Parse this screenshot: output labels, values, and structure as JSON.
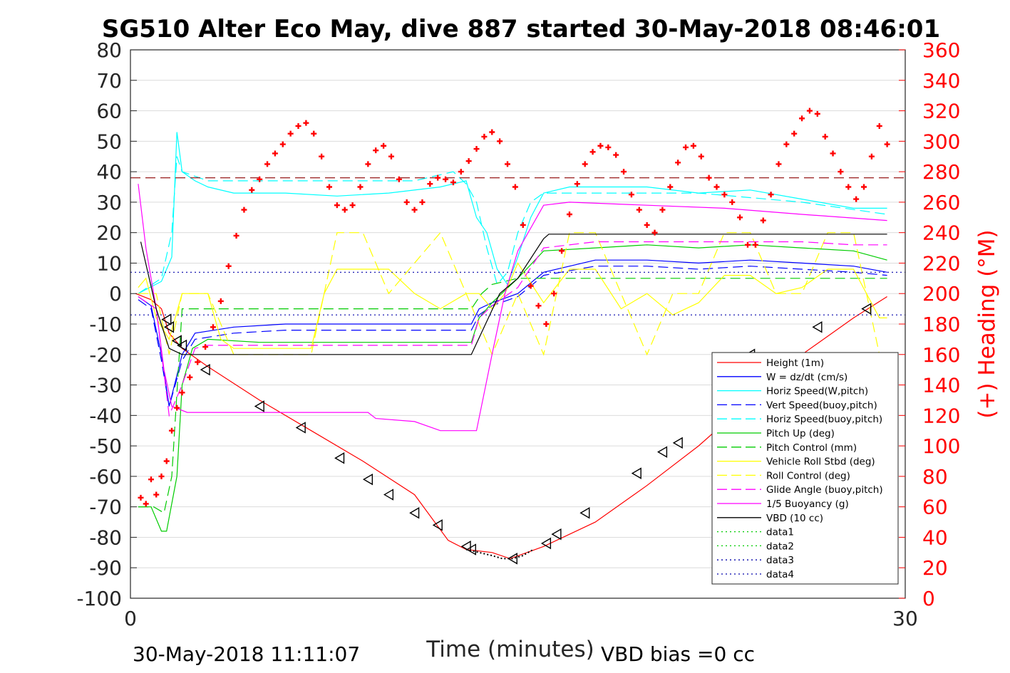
{
  "chart_data": {
    "type": "line",
    "title": "SG510 Alter Eco May, dive 887 started 30-May-2018 08:46:01",
    "xlabel": "Time (minutes)",
    "ylabel": "",
    "ylabel_right": "(+) Heading (°M)",
    "xlim": [
      0,
      30
    ],
    "ylim": [
      -100,
      80
    ],
    "ylim_right": [
      0,
      360
    ],
    "grid": true,
    "legend_position": "bottom-right",
    "x_ticks": [
      "0",
      "30"
    ],
    "y_ticks": [
      "80",
      "70",
      "60",
      "50",
      "40",
      "30",
      "20",
      "10",
      "0",
      "-10",
      "-20",
      "-30",
      "-40",
      "-50",
      "-60",
      "-70",
      "-80",
      "-90",
      "-100"
    ],
    "y_right_ticks": [
      "360",
      "340",
      "320",
      "300",
      "280",
      "260",
      "240",
      "220",
      "200",
      "180",
      "160",
      "140",
      "120",
      "100",
      "80",
      "60",
      "40",
      "20",
      "0"
    ],
    "footer_left": "30-May-2018 11:11:07",
    "footer_right": "VBD bias =0 cc",
    "series": [
      {
        "name": "Height (1m)",
        "color": "#ff0000",
        "style": "solid",
        "x": [
          0.2,
          0.8,
          1.2,
          1.5,
          2,
          3,
          5,
          7,
          9,
          11,
          12.3,
          13,
          14,
          14.7,
          16,
          18,
          20,
          22,
          24,
          26,
          28,
          29.3
        ],
        "y": [
          0,
          -2,
          -5,
          -13,
          -18,
          -24,
          -35,
          -45,
          -55,
          -66,
          -81,
          -84,
          -85,
          -87,
          -83,
          -75,
          -63,
          -50,
          -35,
          -20,
          -8,
          -1
        ]
      },
      {
        "name": "W = dz/dt (cm/s)",
        "color": "#0000ff",
        "style": "solid",
        "x": [
          0.3,
          0.8,
          1.2,
          1.5,
          2,
          2.5,
          4,
          6,
          8,
          10,
          12,
          13.2,
          13.5,
          14,
          15,
          16,
          18,
          20,
          22,
          24,
          26,
          28,
          29.3
        ],
        "y": [
          -1,
          -4,
          -20,
          -37,
          -20,
          -13,
          -11,
          -10,
          -10,
          -10,
          -10,
          -10,
          -5,
          -3,
          0,
          7,
          11,
          11,
          10,
          11,
          10,
          9,
          7
        ]
      },
      {
        "name": "Horiz Speed(W,pitch)",
        "color": "#00ffff",
        "style": "solid",
        "x": [
          0.3,
          1.2,
          1.6,
          1.8,
          2,
          2.5,
          3,
          4,
          6,
          8,
          10,
          12,
          13,
          13.4,
          13.8,
          14.2,
          14.6,
          15,
          15.5,
          16,
          17,
          20,
          22,
          24,
          26,
          28,
          29.3
        ],
        "y": [
          0,
          4,
          12,
          53,
          40,
          37,
          35,
          33,
          33,
          32,
          33,
          35,
          37,
          25,
          20,
          8,
          3,
          12,
          25,
          33,
          35,
          35,
          33,
          34,
          31,
          28,
          28
        ]
      },
      {
        "name": "Vert Speed(buoy,pitch)",
        "color": "#0000ff",
        "style": "dash",
        "x": [
          0.3,
          0.8,
          1.2,
          1.5,
          2,
          2.5,
          4,
          6,
          8,
          10,
          12,
          13.2,
          13.5,
          14,
          15,
          16,
          18,
          20,
          22,
          24,
          26,
          28,
          29.3
        ],
        "y": [
          -2,
          -5,
          -22,
          -37,
          -22,
          -15,
          -13,
          -12,
          -12,
          -12,
          -12,
          -12,
          -7,
          -4,
          -1,
          6,
          9,
          9,
          8,
          9,
          8,
          7,
          6
        ]
      },
      {
        "name": "Horiz Speed(buoy,pitch)",
        "color": "#00ffff",
        "style": "dash",
        "x": [
          0.3,
          1.2,
          1.6,
          1.8,
          2,
          3,
          5,
          8,
          11,
          12.5,
          13,
          13.4,
          13.8,
          14.2,
          14.6,
          15,
          15.5,
          16,
          18,
          22,
          26,
          29.3
        ],
        "y": [
          0,
          5,
          20,
          45,
          40,
          37,
          37,
          37,
          37,
          40,
          36,
          30,
          15,
          3,
          7,
          20,
          30,
          33,
          33,
          33,
          30,
          26
        ]
      },
      {
        "name": "Pitch Up (deg)",
        "color": "#00cc00",
        "style": "solid",
        "x": [
          0.3,
          0.8,
          1.2,
          1.4,
          1.8,
          2,
          2.4,
          3,
          5,
          8,
          11,
          13.2,
          13.5,
          14,
          15,
          16,
          18,
          20,
          22,
          24,
          26,
          28,
          29.3
        ],
        "y": [
          -70,
          -70,
          -78,
          -78,
          -60,
          -30,
          -18,
          -15,
          -16,
          -16,
          -16,
          -16,
          -8,
          -3,
          5,
          14,
          15,
          16,
          15,
          16,
          15,
          14,
          11
        ]
      },
      {
        "name": "Pitch Control (mm)",
        "color": "#00cc00",
        "style": "dash",
        "x": [
          0.3,
          0.9,
          1.3,
          1.6,
          2,
          3,
          8,
          13.2,
          13.6,
          14,
          15,
          29.3
        ],
        "y": [
          -70,
          -70,
          -72,
          -60,
          -5,
          -5,
          -5,
          -5,
          0,
          3,
          5,
          5
        ]
      },
      {
        "name": "Vehicle Roll Stbd (deg)",
        "color": "#ffff00",
        "style": "solid",
        "x": [
          0.3,
          0.6,
          1,
          1.5,
          2,
          2.5,
          3,
          3.5,
          4,
          5,
          6,
          7,
          7.5,
          8,
          10,
          11,
          12,
          13,
          13.5,
          14,
          14.5,
          15,
          16,
          17,
          18,
          19,
          20,
          21,
          22,
          23,
          24,
          25,
          26,
          27,
          28,
          29,
          29.3
        ],
        "y": [
          2,
          5,
          -8,
          -15,
          0,
          0,
          0,
          -15,
          -18,
          -18,
          -18,
          -18,
          0,
          8,
          8,
          0,
          -5,
          0,
          0,
          -5,
          0,
          10,
          -3,
          8,
          8,
          -5,
          0,
          -7,
          -3,
          6,
          6,
          0,
          2,
          8,
          8,
          -8,
          -8
        ]
      },
      {
        "name": "Roll Control (deg)",
        "color": "#ffff00",
        "style": "dash",
        "x": [
          0.3,
          1,
          1.5,
          2,
          3,
          4,
          6,
          7,
          8,
          9,
          10,
          12,
          13,
          14,
          15,
          16,
          17,
          18,
          19,
          20,
          21,
          22,
          23,
          24,
          25,
          26,
          27,
          28,
          29,
          29.3
        ],
        "y": [
          0,
          0,
          -20,
          0,
          0,
          -20,
          -20,
          -20,
          20,
          20,
          0,
          20,
          0,
          -20,
          0,
          -20,
          20,
          20,
          0,
          -20,
          0,
          0,
          20,
          20,
          0,
          0,
          20,
          20,
          -20,
          -20
        ]
      },
      {
        "name": "Glide Angle (buoy,pitch)",
        "color": "#ff00ff",
        "style": "dash",
        "x": [
          0.3,
          1,
          1.5,
          2,
          2.5,
          3,
          5,
          8,
          11,
          13.2,
          13.5,
          14,
          15,
          16,
          18,
          20,
          22,
          24,
          26,
          28,
          29.3
        ],
        "y": [
          -1,
          -5,
          -40,
          -30,
          -18,
          -17,
          -17,
          -17,
          -17,
          -17,
          -8,
          -4,
          2,
          15,
          17,
          17,
          17,
          17,
          17,
          16,
          16
        ]
      },
      {
        "name": "1/5 Buoyancy (g)",
        "color": "#ff00ff",
        "style": "solid",
        "x": [
          0.3,
          0.6,
          1,
          1.3,
          1.6,
          1.9,
          2.2,
          3,
          5,
          8,
          9.2,
          9.5,
          11,
          12,
          13,
          13.4,
          14,
          14.5,
          15,
          16,
          17,
          20,
          23,
          26,
          29.3
        ],
        "y": [
          36,
          15,
          -5,
          -25,
          -37,
          -38,
          -39,
          -39,
          -39,
          -39,
          -39,
          -41,
          -42,
          -45,
          -45,
          -45,
          -20,
          0,
          14,
          29,
          30,
          29,
          28,
          26,
          24
        ]
      },
      {
        "name": "VBD (10 cc)",
        "color": "#000000",
        "style": "solid",
        "x": [
          0.4,
          1,
          1.5,
          2,
          2.5,
          3,
          5,
          8,
          11,
          13.2,
          14.3,
          15,
          16,
          16.2,
          18,
          22,
          26,
          29.3
        ],
        "y": [
          17,
          -5,
          -18,
          -20,
          -20,
          -20,
          -20,
          -20,
          -20,
          -20,
          0,
          5,
          18,
          19.5,
          19.5,
          19.5,
          19.5,
          19.5
        ]
      },
      {
        "name": "data1",
        "color": "#00cc00",
        "style": "dot",
        "x": [],
        "y": []
      },
      {
        "name": "data2",
        "color": "#00cc00",
        "style": "dot",
        "x": [],
        "y": []
      },
      {
        "name": "data3",
        "color": "#0000aa",
        "style": "dot",
        "x": [
          0,
          30
        ],
        "y": [
          7,
          7
        ]
      },
      {
        "name": "data4",
        "color": "#0000aa",
        "style": "dot",
        "x": [
          0,
          30
        ],
        "y": [
          -7,
          -7
        ]
      }
    ],
    "reference_lines": [
      {
        "axis": "right",
        "value": 276,
        "color": "#8b0000",
        "style": "dash"
      }
    ],
    "apogee_segment": {
      "color": "#000000",
      "style": "dot",
      "x": [
        13,
        13.5,
        14,
        14.4,
        14.8,
        15.2,
        15.6
      ],
      "y": [
        -84,
        -85,
        -86,
        -87,
        -87,
        -86,
        -84
      ]
    },
    "heading_points": {
      "color": "#ff0000",
      "x": [
        0.4,
        0.6,
        0.8,
        1,
        1.2,
        1.4,
        1.6,
        1.8,
        2,
        2.3,
        2.6,
        2.9,
        3.2,
        3.5,
        3.8,
        4.1,
        4.4,
        4.7,
        5,
        5.3,
        5.6,
        5.9,
        6.2,
        6.5,
        6.8,
        7.1,
        7.4,
        7.7,
        8,
        8.3,
        8.6,
        8.9,
        9.2,
        9.5,
        9.8,
        10.1,
        10.4,
        10.7,
        11,
        11.3,
        11.6,
        11.9,
        12.2,
        12.5,
        12.8,
        13.1,
        13.4,
        13.7,
        14,
        14.3,
        14.6,
        14.9,
        15.2,
        15.5,
        15.8,
        16.1,
        16.4,
        16.7,
        17,
        17.3,
        17.6,
        17.9,
        18.2,
        18.5,
        18.8,
        19.1,
        19.4,
        19.7,
        20,
        20.3,
        20.6,
        20.9,
        21.2,
        21.5,
        21.8,
        22.1,
        22.4,
        22.7,
        23,
        23.3,
        23.6,
        23.9,
        24.2,
        24.5,
        24.8,
        25.1,
        25.4,
        25.7,
        26,
        26.3,
        26.6,
        26.9,
        27.2,
        27.5,
        27.8,
        28.1,
        28.4,
        28.7,
        29,
        29.3
      ],
      "y": [
        66,
        62,
        78,
        68,
        80,
        90,
        110,
        125,
        135,
        145,
        155,
        165,
        178,
        195,
        218,
        238,
        255,
        268,
        275,
        285,
        292,
        298,
        305,
        310,
        312,
        305,
        290,
        270,
        258,
        255,
        258,
        270,
        285,
        294,
        297,
        290,
        275,
        260,
        255,
        260,
        272,
        276,
        275,
        273,
        280,
        287,
        295,
        303,
        306,
        300,
        285,
        270,
        245,
        205,
        192,
        180,
        200,
        228,
        252,
        272,
        285,
        293,
        297,
        296,
        291,
        280,
        265,
        255,
        245,
        240,
        255,
        270,
        286,
        296,
        297,
        290,
        276,
        270,
        265,
        260,
        250,
        232,
        232,
        248,
        265,
        285,
        298,
        305,
        315,
        320,
        318,
        303,
        292,
        280,
        270,
        262,
        270,
        290,
        310,
        298
      ]
    },
    "height_markers": {
      "color": "#000000",
      "x": [
        1.4,
        1.5,
        1.8,
        2,
        2.9,
        5,
        6.6,
        8.1,
        9.2,
        10,
        11,
        11.9,
        13,
        13.2,
        14.8,
        16.1,
        16.5,
        17.6,
        19.6,
        20.6,
        21.2,
        24,
        26.6,
        28.5
      ],
      "y": [
        -8.5,
        -11,
        -15.5,
        -17,
        -25,
        -37,
        -44,
        -54,
        -61,
        -66,
        -72,
        -76,
        -83,
        -84,
        -87,
        -82,
        -79,
        -72,
        -59,
        -52,
        -49,
        -20,
        -11,
        -5
      ]
    }
  }
}
